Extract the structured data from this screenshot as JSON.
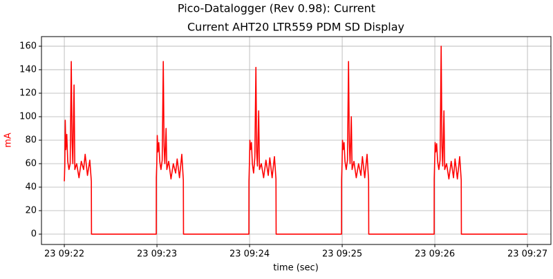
{
  "chart_data": {
    "type": "line",
    "title": "Pico-Datalogger (Rev 0.98): Current",
    "subtitle": "Current AHT20 LTR559 PDM SD Display",
    "x_label": "time (sec)",
    "y_label": "mA",
    "y_label_color": "#ff0000",
    "grid": true,
    "x": [
      0,
      0.3,
      0.6,
      1,
      1.6,
      2.2,
      3,
      3.8,
      4.5,
      5,
      5.5,
      6.3,
      6.8,
      8,
      9.5,
      11,
      12.5,
      13.5,
      15,
      16.5,
      17.5,
      17.6,
      59.55,
      59.6,
      59.9,
      60.2,
      60.6,
      61.2,
      61.8,
      62.6,
      63.4,
      64.1,
      64.6,
      65.1,
      65.9,
      66.4,
      67.6,
      69.1,
      70.6,
      72.1,
      73.1,
      74.6,
      76.1,
      77.1,
      77.2,
      119.55,
      119.6,
      119.9,
      120.2,
      120.6,
      121.2,
      121.8,
      122.6,
      123.4,
      124.1,
      124.6,
      125.1,
      125.9,
      126.4,
      127.6,
      129.1,
      130.6,
      132.1,
      133.1,
      134.6,
      136.1,
      137.1,
      137.2,
      179.55,
      179.6,
      179.9,
      180.2,
      180.6,
      181.2,
      181.8,
      182.6,
      183.4,
      184.1,
      184.6,
      185.1,
      185.9,
      186.4,
      187.6,
      189.1,
      190.6,
      192.1,
      193.1,
      194.6,
      196.1,
      197.1,
      197.2,
      239.55,
      239.6,
      239.9,
      240.2,
      240.6,
      241.2,
      241.8,
      242.6,
      243.4,
      244.1,
      244.6,
      245.1,
      245.9,
      246.4,
      247.6,
      249.1,
      250.6,
      252.1,
      253.1,
      254.6,
      256.1,
      257.1,
      257.2,
      300
    ],
    "series": [
      {
        "name": "Current",
        "color": "#ff0000",
        "values": [
          45,
          58,
          97,
          72,
          85,
          62,
          55,
          60,
          147,
          80,
          60,
          127,
          55,
          60,
          48,
          62,
          55,
          68,
          50,
          63,
          45,
          0,
          0,
          48,
          60,
          84,
          70,
          78,
          62,
          55,
          63,
          147,
          75,
          60,
          90,
          55,
          62,
          47,
          60,
          52,
          64,
          48,
          68,
          46,
          0,
          0,
          45,
          60,
          80,
          72,
          78,
          60,
          52,
          65,
          142,
          70,
          58,
          105,
          55,
          60,
          48,
          63,
          50,
          65,
          48,
          66,
          47,
          0,
          0,
          46,
          60,
          80,
          72,
          78,
          62,
          55,
          63,
          147,
          78,
          60,
          100,
          55,
          62,
          48,
          60,
          50,
          66,
          48,
          68,
          46,
          0,
          0,
          47,
          62,
          78,
          70,
          77,
          62,
          55,
          63,
          160,
          75,
          58,
          105,
          55,
          60,
          47,
          62,
          48,
          64,
          47,
          66,
          46,
          0,
          0
        ]
      }
    ],
    "xlim": [
      -14.8,
      315.2
    ],
    "xticks": [
      {
        "value": 0,
        "label": "23 09:22"
      },
      {
        "value": 60,
        "label": "23 09:23"
      },
      {
        "value": 120,
        "label": "23 09:24"
      },
      {
        "value": 180,
        "label": "23 09:25"
      },
      {
        "value": 240,
        "label": "23 09:26"
      },
      {
        "value": 300,
        "label": "23 09:27"
      }
    ],
    "ylim": [
      -8.8,
      168.2
    ],
    "yticks": [
      0,
      20,
      40,
      60,
      80,
      100,
      120,
      140,
      160
    ]
  }
}
